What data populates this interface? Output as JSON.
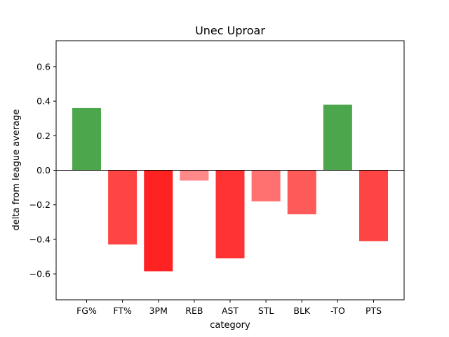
{
  "chart_data": {
    "type": "bar",
    "title": "Unec Uproar",
    "xlabel": "category",
    "ylabel": "delta from league average",
    "categories": [
      "FG%",
      "FT%",
      "3PM",
      "REB",
      "AST",
      "STL",
      "BLK",
      "-TO",
      "PTS"
    ],
    "values": [
      0.36,
      -0.43,
      -0.585,
      -0.06,
      -0.51,
      -0.18,
      -0.255,
      0.38,
      -0.41
    ],
    "colors": [
      "#4ca64c",
      "#ff4444",
      "#ff2222",
      "#ff8888",
      "#ff3333",
      "#ff7070",
      "#ff5a5a",
      "#4ca64c",
      "#ff4444"
    ],
    "ylim": [
      -0.75,
      0.75
    ],
    "yticks": [
      -0.6,
      -0.4,
      -0.2,
      0.0,
      0.2,
      0.4,
      0.6
    ],
    "ytick_labels": [
      "−0.6",
      "−0.4",
      "−0.2",
      "0.0",
      "0.2",
      "0.4",
      "0.6"
    ],
    "grid": false,
    "zero_line": true
  }
}
